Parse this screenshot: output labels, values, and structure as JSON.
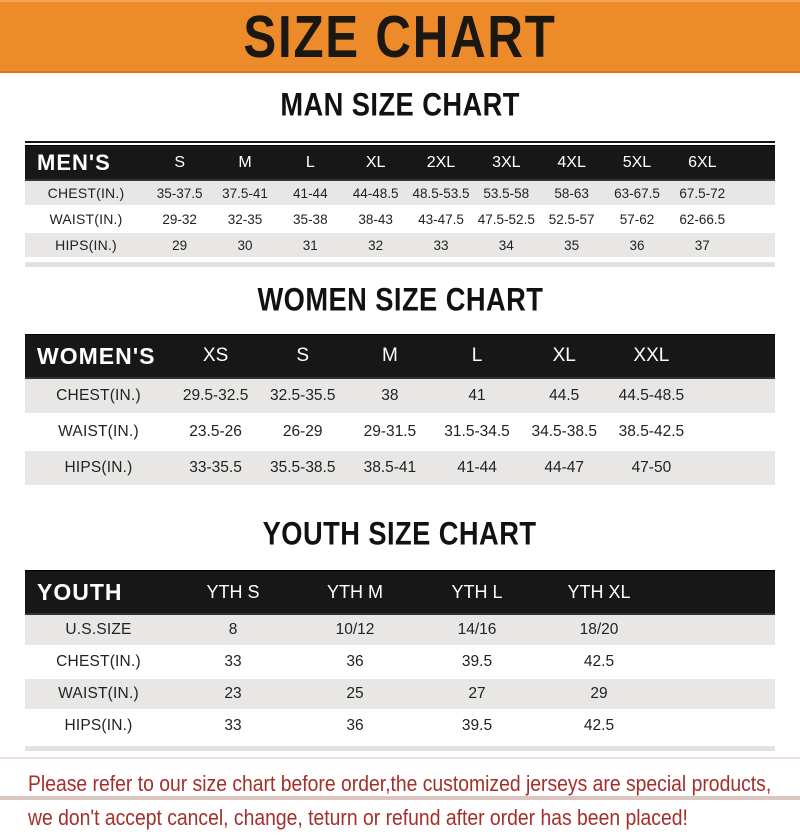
{
  "banner": {
    "title": "SIZE CHART"
  },
  "colors": {
    "banner_orange": "#ED8B2B",
    "bar_black": "#171717",
    "row_gray": "#E8E7E5",
    "footer_red": "#A52F2B"
  },
  "chart_data": [
    {
      "type": "table",
      "title": "MAN SIZE CHART",
      "header_label": "MEN'S",
      "columns": [
        "S",
        "M",
        "L",
        "XL",
        "2XL",
        "3XL",
        "4XL",
        "5XL",
        "6XL"
      ],
      "rows": [
        {
          "label": "CHEST(IN.)",
          "values": [
            "35-37.5",
            "37.5-41",
            "41-44",
            "44-48.5",
            "48.5-53.5",
            "53.5-58",
            "58-63",
            "63-67.5",
            "67.5-72"
          ]
        },
        {
          "label": "WAIST(IN.)",
          "values": [
            "29-32",
            "32-35",
            "35-38",
            "38-43",
            "43-47.5",
            "47.5-52.5",
            "52.5-57",
            "57-62",
            "62-66.5"
          ]
        },
        {
          "label": "HIPS(IN.)",
          "values": [
            "29",
            "30",
            "31",
            "32",
            "33",
            "34",
            "35",
            "36",
            "37"
          ]
        }
      ]
    },
    {
      "type": "table",
      "title": "WOMEN SIZE CHART",
      "header_label": "WOMEN'S",
      "columns": [
        "XS",
        "S",
        "M",
        "L",
        "XL",
        "XXL"
      ],
      "rows": [
        {
          "label": "CHEST(IN.)",
          "values": [
            "29.5-32.5",
            "32.5-35.5",
            "38",
            "41",
            "44.5",
            "44.5-48.5"
          ]
        },
        {
          "label": "WAIST(IN.)",
          "values": [
            "23.5-26",
            "26-29",
            "29-31.5",
            "31.5-34.5",
            "34.5-38.5",
            "38.5-42.5"
          ]
        },
        {
          "label": "HIPS(IN.)",
          "values": [
            "33-35.5",
            "35.5-38.5",
            "38.5-41",
            "41-44",
            "44-47",
            "47-50"
          ]
        }
      ]
    },
    {
      "type": "table",
      "title": "YOUTH SIZE CHART",
      "header_label": "YOUTH",
      "columns": [
        "YTH S",
        "YTH M",
        "YTH L",
        "YTH XL"
      ],
      "rows": [
        {
          "label": "U.S.SIZE",
          "values": [
            "8",
            "10/12",
            "14/16",
            "18/20"
          ]
        },
        {
          "label": "CHEST(IN.)",
          "values": [
            "33",
            "36",
            "39.5",
            "42.5"
          ]
        },
        {
          "label": "WAIST(IN.)",
          "values": [
            "23",
            "25",
            "27",
            "29"
          ]
        },
        {
          "label": "HIPS(IN.)",
          "values": [
            "33",
            "36",
            "39.5",
            "42.5"
          ]
        }
      ]
    }
  ],
  "footer": {
    "line1": "Please refer to our size chart before order,the customized jerseys are special products,",
    "line2": "we don't accept cancel, change, teturn or refund after order has been placed!"
  }
}
